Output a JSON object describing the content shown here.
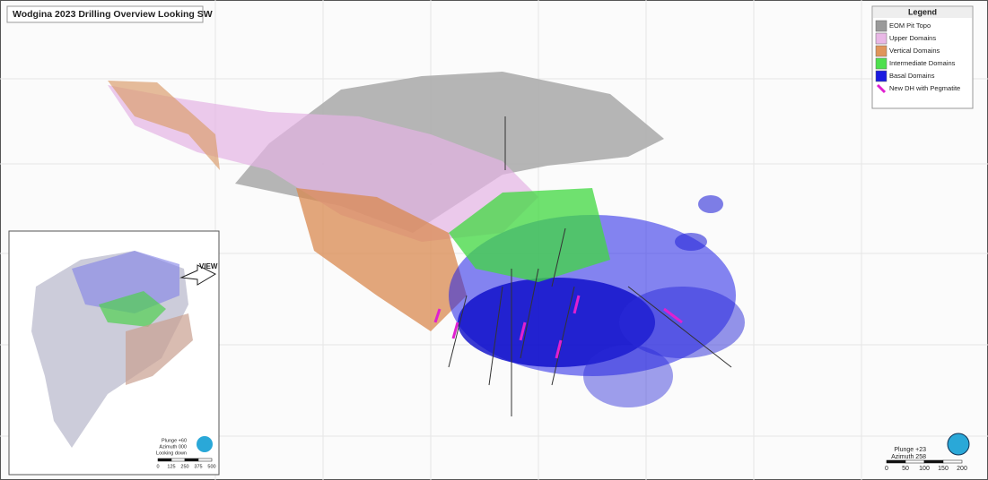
{
  "header": {
    "title": "Wodgina 2023 Drilling Overview Looking SW"
  },
  "legend": {
    "title": "Legend",
    "items": [
      {
        "label": "EOM Pit Topo",
        "color": "#9a9a9a"
      },
      {
        "label": "Upper Domains",
        "color": "#e9b8e6"
      },
      {
        "label": "Vertical Domains",
        "color": "#e0955a"
      },
      {
        "label": "Intermediate Domains",
        "color": "#4ee04e"
      },
      {
        "label": "Basal Domains",
        "color": "#1a1ae0"
      },
      {
        "label": "New DH with Pegmatite",
        "color": "#e020d0"
      }
    ]
  },
  "inset": {
    "view_label": "VIEW",
    "plunge": "Plunge +60",
    "azimuth": "Azimuth 000",
    "note": "Looking down",
    "scale": [
      "0",
      "125",
      "250",
      "375",
      "500"
    ]
  },
  "main_view": {
    "plunge": "Plunge +23",
    "azimuth": "Azimuth 258",
    "scale": [
      "0",
      "50",
      "100",
      "150",
      "200"
    ]
  }
}
